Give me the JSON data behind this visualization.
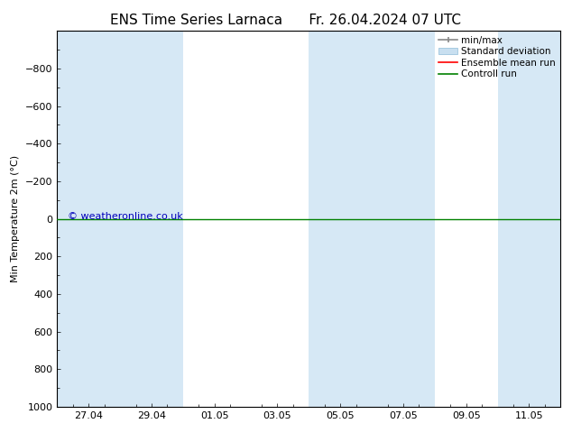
{
  "title_left": "ENS Time Series Larnaca",
  "title_right": "Fr. 26.04.2024 07 UTC",
  "ylabel": "Min Temperature 2m (°C)",
  "ylim_bottom": 1000,
  "ylim_top": -1000,
  "yticks": [
    -800,
    -600,
    -400,
    -200,
    0,
    200,
    400,
    600,
    800,
    1000
  ],
  "background_color": "#ffffff",
  "plot_bg_color": "#ffffff",
  "shade_color": "#d6e8f5",
  "green_line_color": "#008000",
  "red_line_color": "#ff0000",
  "legend_entries": [
    "min/max",
    "Standard deviation",
    "Ensemble mean run",
    "Controll run"
  ],
  "legend_colors_line": [
    "#888888",
    "#b8d4e8",
    "#ff0000",
    "#008000"
  ],
  "watermark": "© weatheronline.co.uk",
  "watermark_color": "#0000bb",
  "x_tick_labels": [
    "27.04",
    "29.04",
    "01.05",
    "03.05",
    "05.05",
    "07.05",
    "09.05",
    "11.05"
  ],
  "x_tick_positions": [
    1,
    3,
    5,
    7,
    9,
    11,
    13,
    15
  ],
  "x_lim": [
    0,
    16
  ],
  "shade_bands": [
    [
      0,
      2
    ],
    [
      2,
      4
    ],
    [
      8,
      10
    ],
    [
      10,
      12
    ],
    [
      14,
      16
    ]
  ],
  "title_fontsize": 11,
  "axis_label_fontsize": 8,
  "tick_fontsize": 8,
  "legend_fontsize": 7.5
}
